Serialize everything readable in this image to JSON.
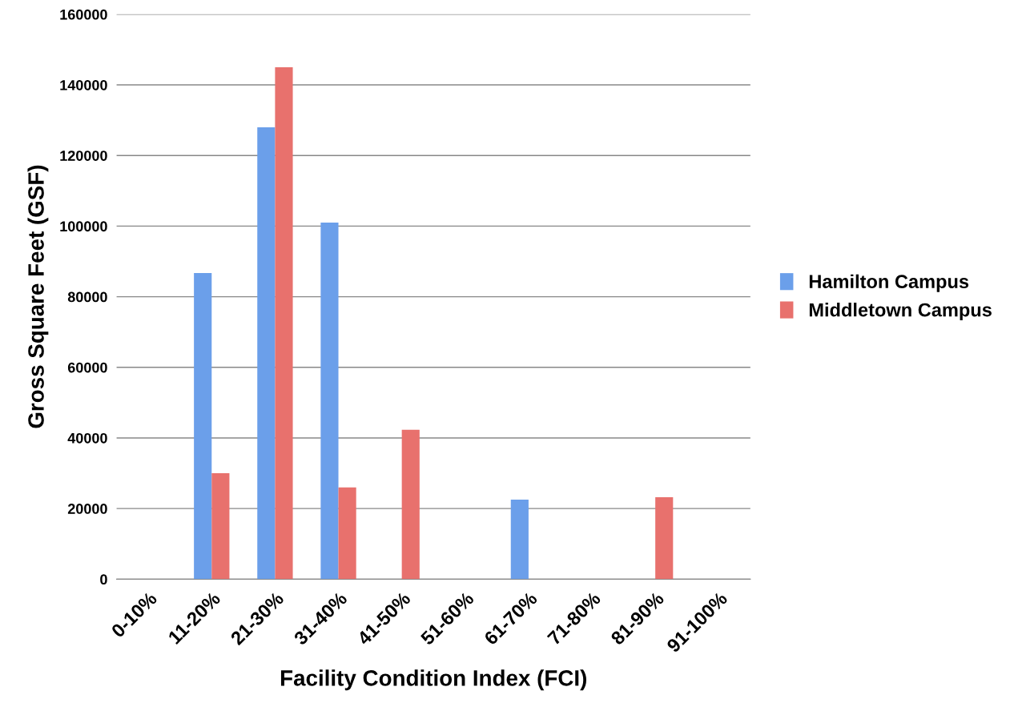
{
  "chart_data": {
    "type": "bar",
    "xlabel": "Facility Condition Index (FCI)",
    "ylabel": "Gross Square Feet (GSF)",
    "categories": [
      "0-10%",
      "11-20%",
      "21-30%",
      "31-40%",
      "41-50%",
      "51-60%",
      "61-70%",
      "71-80%",
      "81-90%",
      "91-100%"
    ],
    "series": [
      {
        "name": "Hamilton Campus",
        "color": "#6b9fea",
        "values": [
          null,
          86700,
          128000,
          101000,
          null,
          null,
          22500,
          null,
          null,
          null
        ]
      },
      {
        "name": "Middletown Campus",
        "color": "#e8716d",
        "values": [
          null,
          30000,
          145000,
          26000,
          42300,
          null,
          null,
          null,
          23200,
          null
        ]
      }
    ],
    "ylim": [
      0,
      160000
    ],
    "yticks": [
      0,
      20000,
      40000,
      60000,
      80000,
      100000,
      120000,
      140000,
      160000
    ],
    "grid": "y",
    "legend": "right"
  }
}
